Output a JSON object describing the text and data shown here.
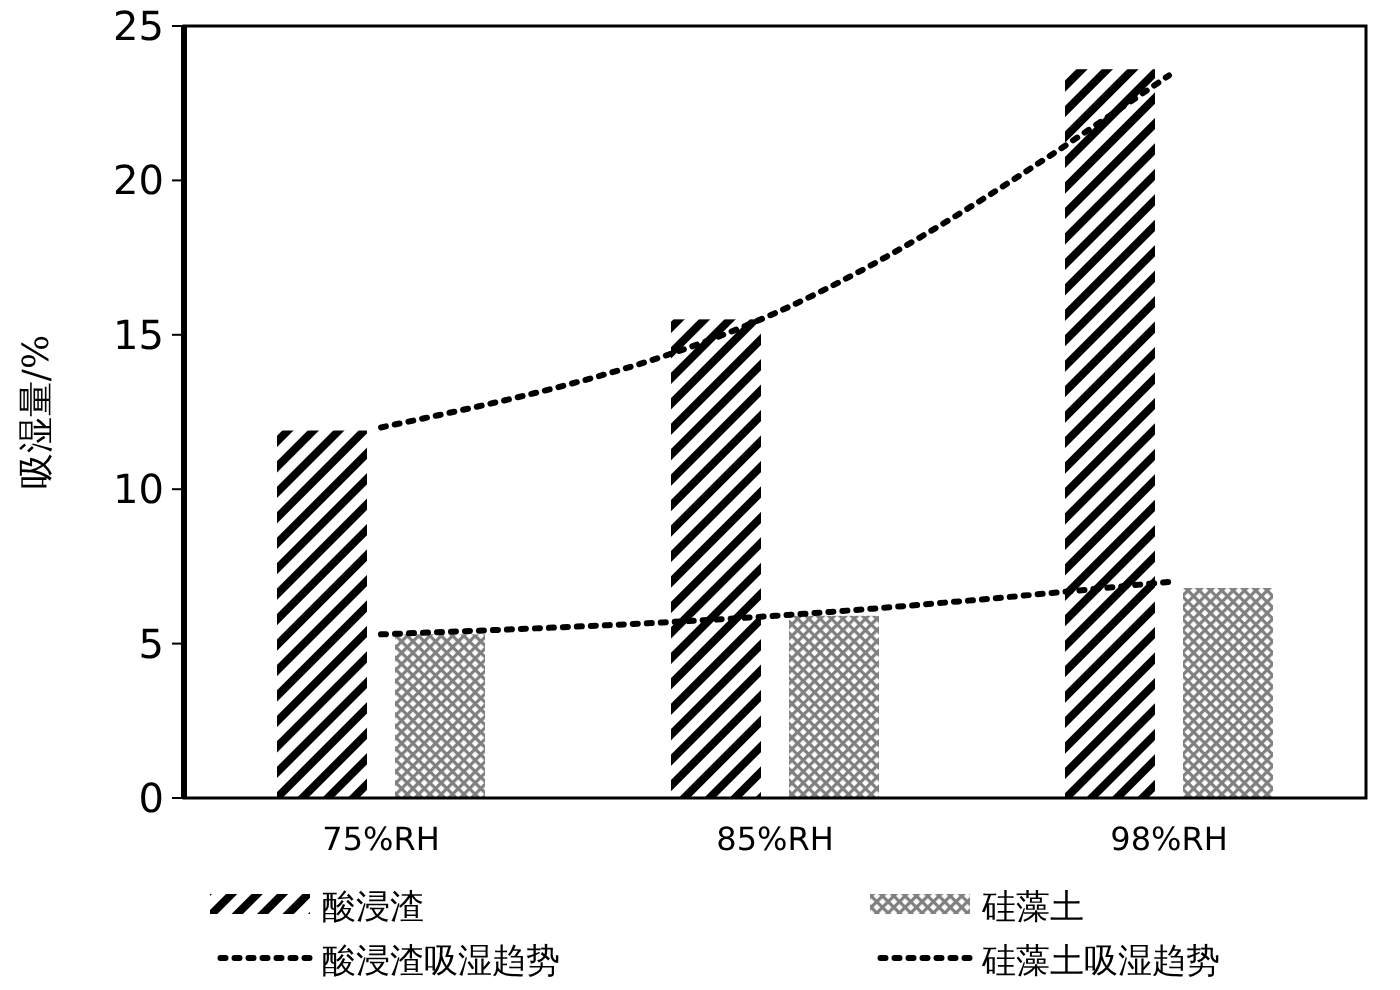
{
  "chart_data": {
    "type": "bar",
    "ylabel": "吸湿量/%",
    "categories": [
      "75%RH",
      "85%RH",
      "98%RH"
    ],
    "series": [
      {
        "name": "酸浸渣",
        "color": "#000000",
        "values": [
          11.9,
          15.5,
          23.6
        ]
      },
      {
        "name": "硅藻土",
        "color": "#808080",
        "values": [
          5.3,
          5.9,
          6.8
        ]
      },
      {
        "name": "酸浸渣吸湿趋势",
        "type": "line",
        "color": "#000000",
        "line_style": "dotted",
        "marker": "none",
        "values": [
          12.0,
          15.7,
          23.4
        ]
      },
      {
        "name": "硅藻土吸湿趋势",
        "type": "line",
        "color": "#000000",
        "line_style": "dotted",
        "marker": "none",
        "values": [
          5.3,
          5.9,
          7.0
        ]
      }
    ],
    "ylim": [
      0,
      25
    ],
    "yticks": [
      0,
      5,
      10,
      15,
      20,
      25
    ],
    "grid": false,
    "legend": "bottom"
  }
}
